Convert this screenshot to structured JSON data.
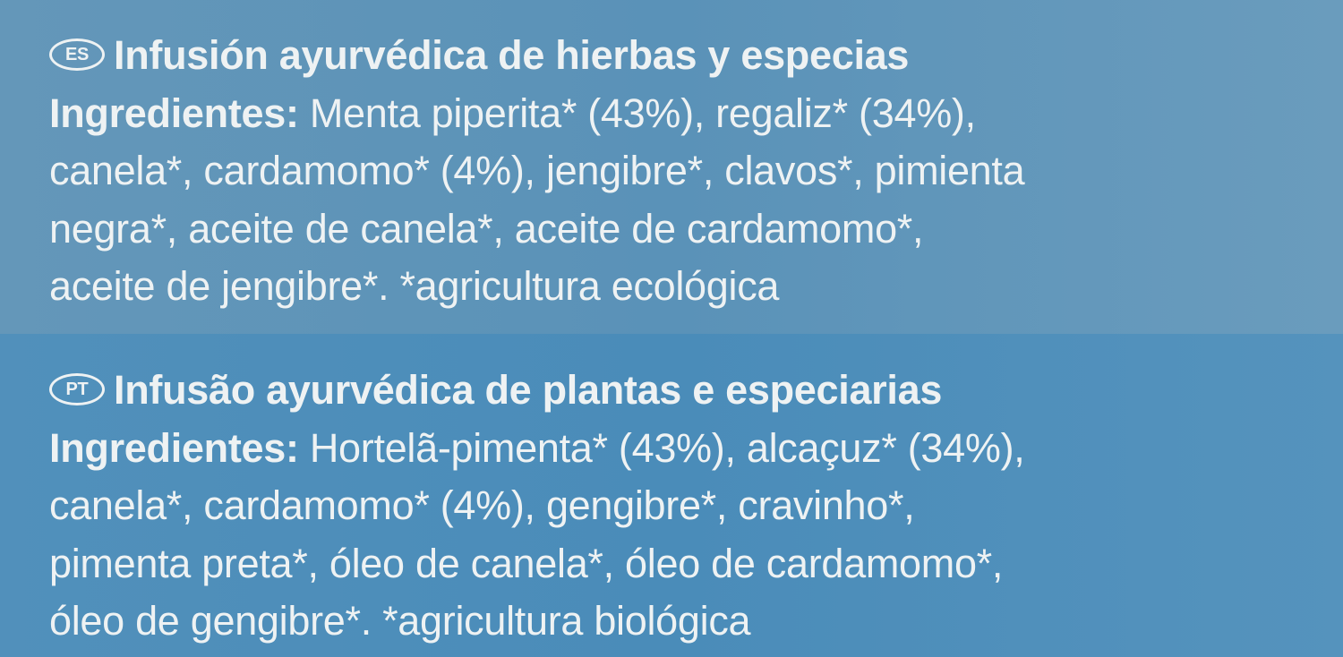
{
  "es": {
    "badge": "ES",
    "title": "Infusión ayurvédica de hierbas y especias",
    "label": "Ingredientes:",
    "lines": [
      " Menta piperita* (43%), regaliz* (34%),",
      "canela*, cardamomo* (4%), jengibre*, clavos*, pimienta",
      "negra*, aceite de canela*, aceite de cardamomo*,",
      "aceite de jengibre*.  *agricultura ecológica"
    ]
  },
  "pt": {
    "badge": "PT",
    "title": "Infusão ayurvédica de plantas e especiarias",
    "label": "Ingredientes:",
    "lines": [
      " Hortelã-pimenta* (43%), alcaçuz* (34%),",
      "canela*, cardamomo* (4%), gengibre*, cravinho*,",
      "pimenta preta*, óleo de canela*, óleo de cardamomo*,",
      "óleo de gengibre*.  *agricultura biológica"
    ]
  },
  "colors": {
    "text": "#eef2f3",
    "top_band": "#5e94b8",
    "bottom_band": "#4f8db8"
  }
}
